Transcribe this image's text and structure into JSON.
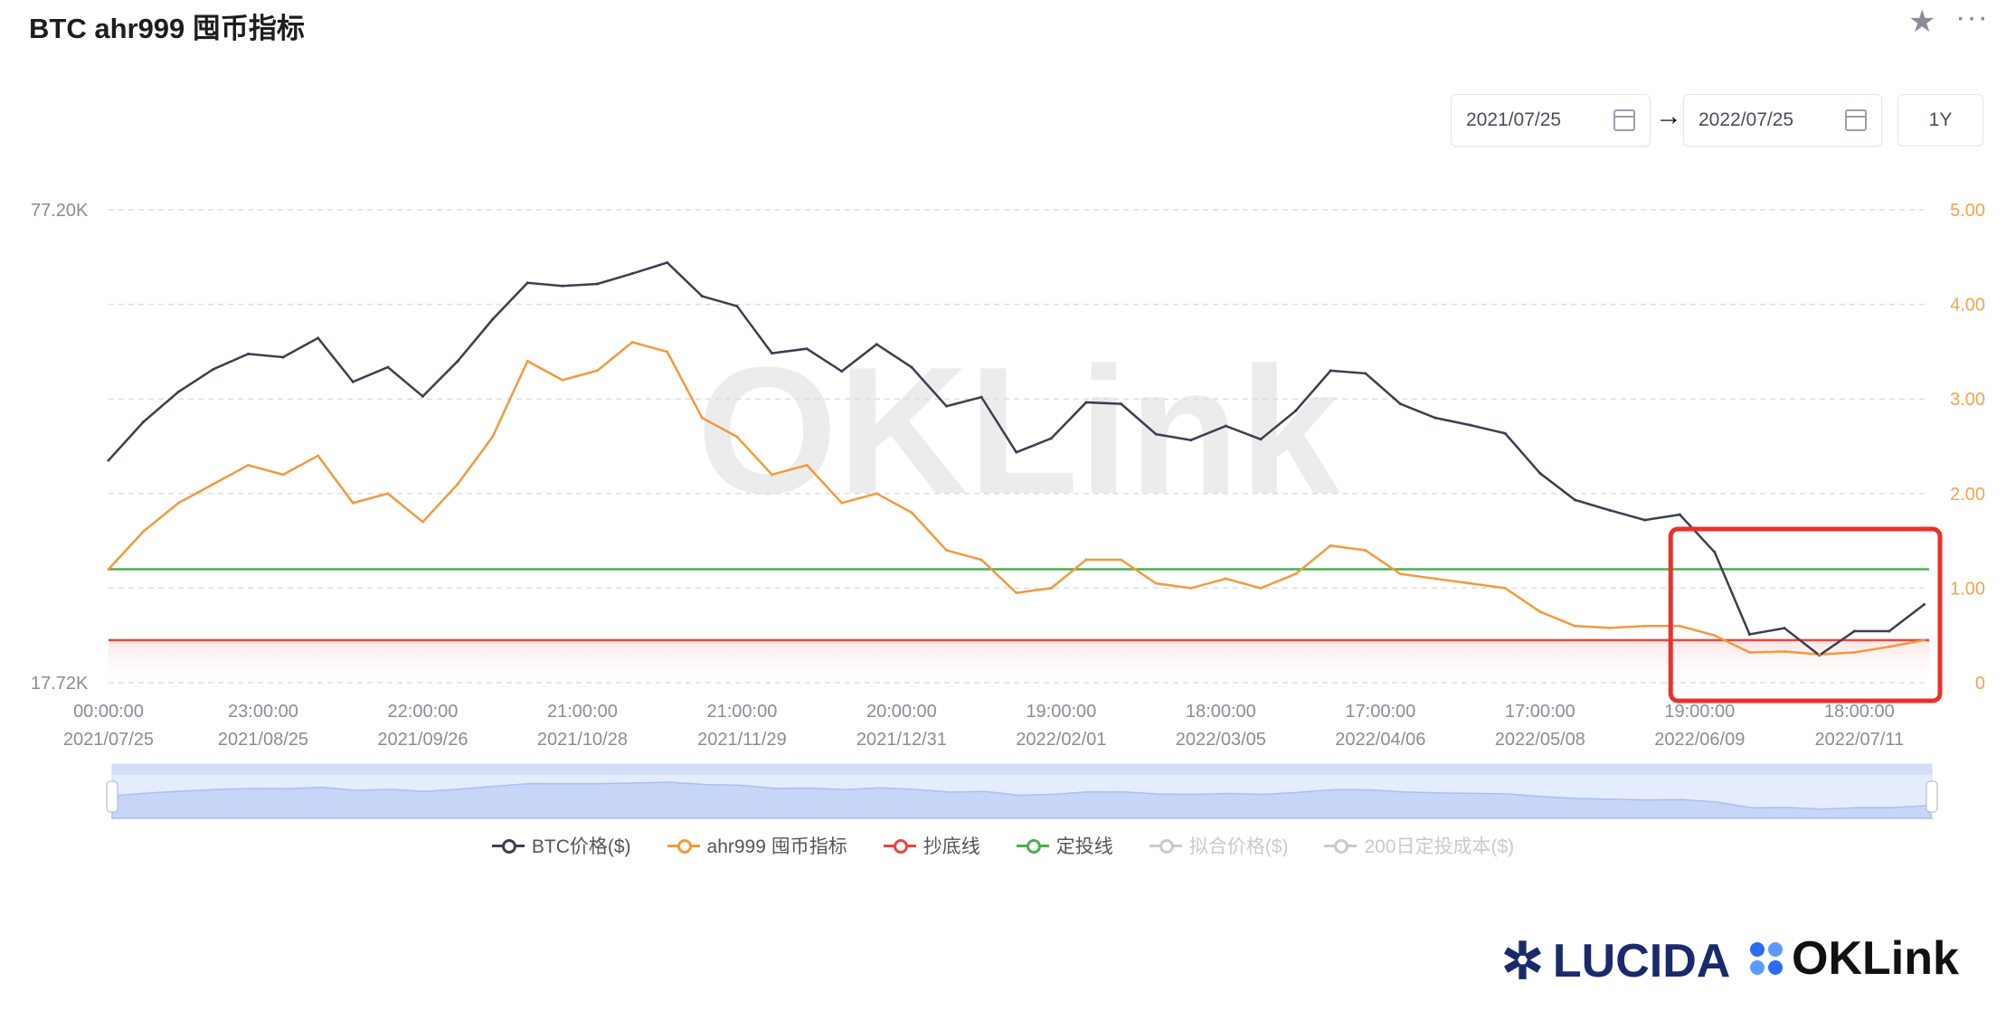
{
  "header": {
    "title": "BTC ahr999 囤币指标",
    "star_icon": "star-icon",
    "more_icon": "more-icon"
  },
  "range": {
    "start": "2021/07/25",
    "end": "2022/07/25",
    "arrow": "→",
    "preset": "1Y"
  },
  "legend": [
    {
      "label": "BTC价格($)",
      "color": "#3b3f4e",
      "active": true
    },
    {
      "label": "ahr999 囤币指标",
      "color": "#f39a3c",
      "active": true
    },
    {
      "label": "抄底线",
      "color": "#e8473f",
      "active": true
    },
    {
      "label": "定投线",
      "color": "#4caf50",
      "active": true
    },
    {
      "label": "拟合价格($)",
      "color": "#c8cacf",
      "active": false
    },
    {
      "label": "200日定投成本($)",
      "color": "#c8cacf",
      "active": false
    }
  ],
  "watermark": "OKLink",
  "brands": {
    "lucida": "LUCIDA",
    "oklink": "OKLink"
  },
  "chart_data": {
    "type": "line",
    "title": "BTC ahr999 囤币指标",
    "x": [
      "2021-07-25",
      "2021-08-01",
      "2021-08-08",
      "2021-08-15",
      "2021-08-22",
      "2021-08-29",
      "2021-09-05",
      "2021-09-12",
      "2021-09-19",
      "2021-09-26",
      "2021-10-03",
      "2021-10-10",
      "2021-10-17",
      "2021-10-24",
      "2021-10-31",
      "2021-11-07",
      "2021-11-14",
      "2021-11-21",
      "2021-11-28",
      "2021-12-05",
      "2021-12-12",
      "2021-12-19",
      "2021-12-26",
      "2022-01-02",
      "2022-01-09",
      "2022-01-16",
      "2022-01-23",
      "2022-01-30",
      "2022-02-06",
      "2022-02-13",
      "2022-02-20",
      "2022-02-27",
      "2022-03-06",
      "2022-03-13",
      "2022-03-20",
      "2022-03-27",
      "2022-04-03",
      "2022-04-10",
      "2022-04-17",
      "2022-04-24",
      "2022-05-01",
      "2022-05-08",
      "2022-05-15",
      "2022-05-22",
      "2022-05-29",
      "2022-06-05",
      "2022-06-12",
      "2022-06-19",
      "2022-06-26",
      "2022-07-03",
      "2022-07-10",
      "2022-07-17",
      "2022-07-24"
    ],
    "series": [
      {
        "name": "BTC价格($)",
        "axis": "left",
        "unit": "K USD",
        "values": [
          35.4,
          39.9,
          43.8,
          47.0,
          49.3,
          48.8,
          51.8,
          45.2,
          47.3,
          43.2,
          48.2,
          54.9,
          61.5,
          60.9,
          61.3,
          63.3,
          65.5,
          59.0,
          57.2,
          49.4,
          50.1,
          46.7,
          50.8,
          47.3,
          41.9,
          43.1,
          36.3,
          37.9,
          42.4,
          42.2,
          38.4,
          37.7,
          39.4,
          37.8,
          41.3,
          46.8,
          46.4,
          42.2,
          40.4,
          39.5,
          38.5,
          34.0,
          31.3,
          30.3,
          29.4,
          29.9,
          26.6,
          20.6,
          21.0,
          19.3,
          20.8,
          20.8,
          22.6
        ]
      },
      {
        "name": "ahr999 囤币指标",
        "axis": "right",
        "values": [
          1.2,
          1.6,
          1.9,
          2.1,
          2.3,
          2.2,
          2.4,
          1.9,
          2.0,
          1.7,
          2.1,
          2.6,
          3.4,
          3.2,
          3.3,
          3.6,
          3.5,
          2.8,
          2.6,
          2.2,
          2.3,
          1.9,
          2.0,
          1.8,
          1.4,
          1.3,
          0.95,
          1.0,
          1.3,
          1.3,
          1.05,
          1.0,
          1.1,
          1.0,
          1.15,
          1.45,
          1.4,
          1.15,
          1.1,
          1.05,
          1.0,
          0.75,
          0.6,
          0.58,
          0.6,
          0.6,
          0.5,
          0.32,
          0.33,
          0.3,
          0.32,
          0.38,
          0.45
        ]
      },
      {
        "name": "抄底线",
        "axis": "right",
        "constant": 0.45
      },
      {
        "name": "定投线",
        "axis": "right",
        "constant": 1.2
      }
    ],
    "left_axis": {
      "scale": "log",
      "range": [
        17.72,
        77.2
      ],
      "tick_labels": [
        "77.20K",
        "17.72K"
      ]
    },
    "right_axis": {
      "range": [
        0,
        5
      ],
      "ticks": [
        0,
        1,
        2,
        3,
        4,
        5
      ],
      "tick_labels": [
        "0",
        "1.00",
        "2.00",
        "3.00",
        "4.00",
        "5.00"
      ]
    },
    "x_ticks": [
      {
        "date": "2021-07-25",
        "time": "00:00:00",
        "label": "2021/07/25"
      },
      {
        "date": "2021-08-25",
        "time": "23:00:00",
        "label": "2021/08/25"
      },
      {
        "date": "2021-09-26",
        "time": "22:00:00",
        "label": "2021/09/26"
      },
      {
        "date": "2021-10-28",
        "time": "21:00:00",
        "label": "2021/10/28"
      },
      {
        "date": "2021-11-29",
        "time": "21:00:00",
        "label": "2021/11/29"
      },
      {
        "date": "2021-12-31",
        "time": "20:00:00",
        "label": "2021/12/31"
      },
      {
        "date": "2022-02-01",
        "time": "19:00:00",
        "label": "2022/02/01"
      },
      {
        "date": "2022-03-05",
        "time": "18:00:00",
        "label": "2022/03/05"
      },
      {
        "date": "2022-04-06",
        "time": "17:00:00",
        "label": "2022/04/06"
      },
      {
        "date": "2022-05-08",
        "time": "17:00:00",
        "label": "2022/05/08"
      },
      {
        "date": "2022-06-09",
        "time": "19:00:00",
        "label": "2022/06/09"
      },
      {
        "date": "2022-07-11",
        "time": "18:00:00",
        "label": "2022/07/11"
      }
    ],
    "x_range": [
      "2021-07-25",
      "2022-07-25"
    ],
    "grid": true,
    "legend_position": "bottom",
    "annotation": {
      "type": "highlight-box",
      "from": "2022-06-05",
      "to": "2022-07-25",
      "color": "#e8322b"
    }
  }
}
